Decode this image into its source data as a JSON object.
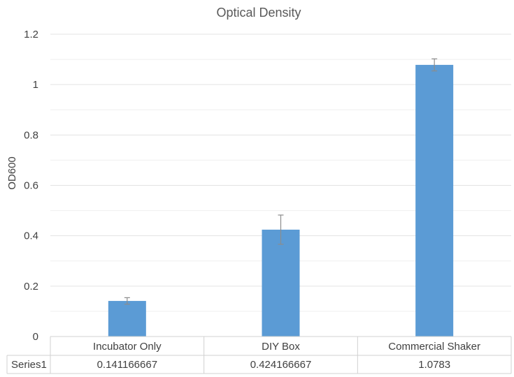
{
  "chart_data": {
    "type": "bar",
    "title": "Optical Density",
    "ylabel": "OD600",
    "xlabel": "",
    "categories": [
      "Incubator Only",
      "DIY Box",
      "Commercial Shaker"
    ],
    "series": [
      {
        "name": "Series1",
        "values": [
          0.141166667,
          0.424166667,
          1.0783
        ],
        "value_labels": [
          "0.141166667",
          "0.424166667",
          "1.0783"
        ],
        "error": [
          0.013,
          0.058,
          0.024
        ]
      }
    ],
    "ylim": [
      0,
      1.2
    ],
    "yticks": [
      "0",
      "0.2",
      "0.4",
      "0.6",
      "0.8",
      "1",
      "1.2"
    ],
    "grid": true,
    "data_table": true,
    "colors": {
      "bar": "#5b9bd5",
      "grid": "#e3e3e3",
      "minor_grid": "#efefef",
      "error": "#8c8c8c"
    }
  }
}
